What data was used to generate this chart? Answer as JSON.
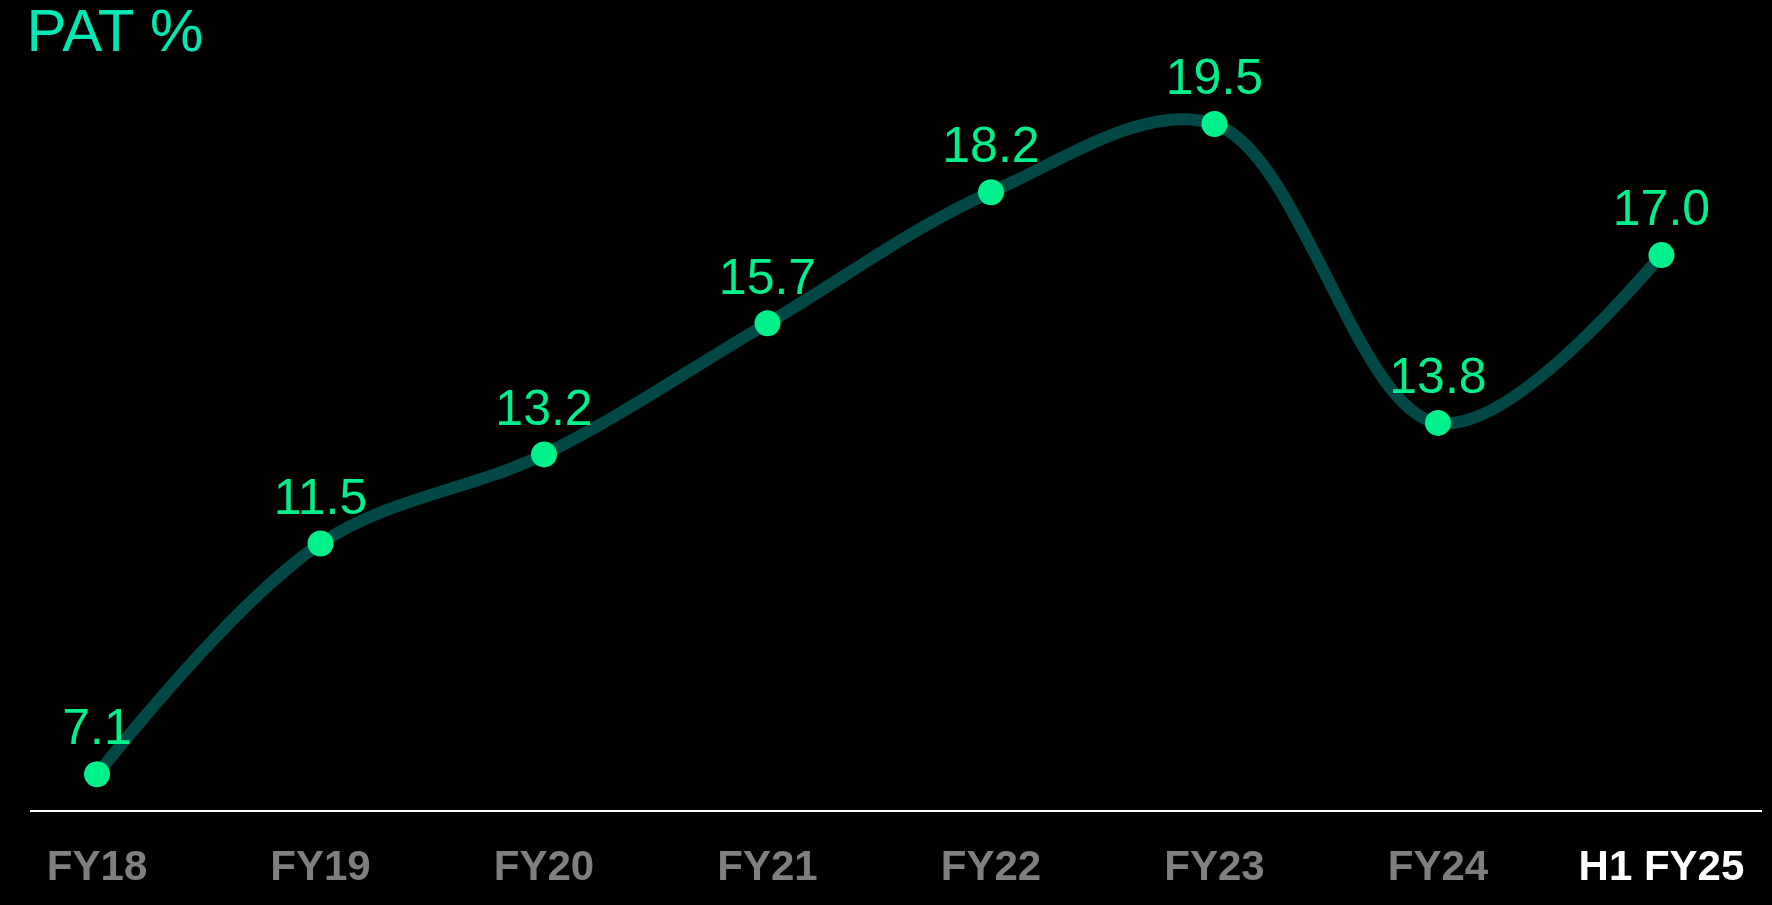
{
  "chart_data": {
    "type": "line",
    "title": "PAT %",
    "categories": [
      "FY18",
      "FY19",
      "FY20",
      "FY21",
      "FY22",
      "FY23",
      "FY24",
      "H1 FY25"
    ],
    "series": [
      {
        "color": "#004845",
        "colors": [
          "#00f08c",
          "#00f08c",
          "#00f08c",
          "#00f08c",
          "#00f08c",
          "#00f08c",
          "#00f08c",
          "#00f08c"
        ],
        "values": [
          7.1,
          11.5,
          13.2,
          15.7,
          18.2,
          19.5,
          13.8,
          17.0
        ],
        "value_labels": [
          "7.1",
          "11.5",
          "13.2",
          "15.7",
          "18.2",
          "19.5",
          "13.8",
          "17.0"
        ]
      }
    ],
    "tick_labels": "x",
    "marker": "circle",
    "line_style": "solid",
    "grid": false,
    "legend": false
  }
}
